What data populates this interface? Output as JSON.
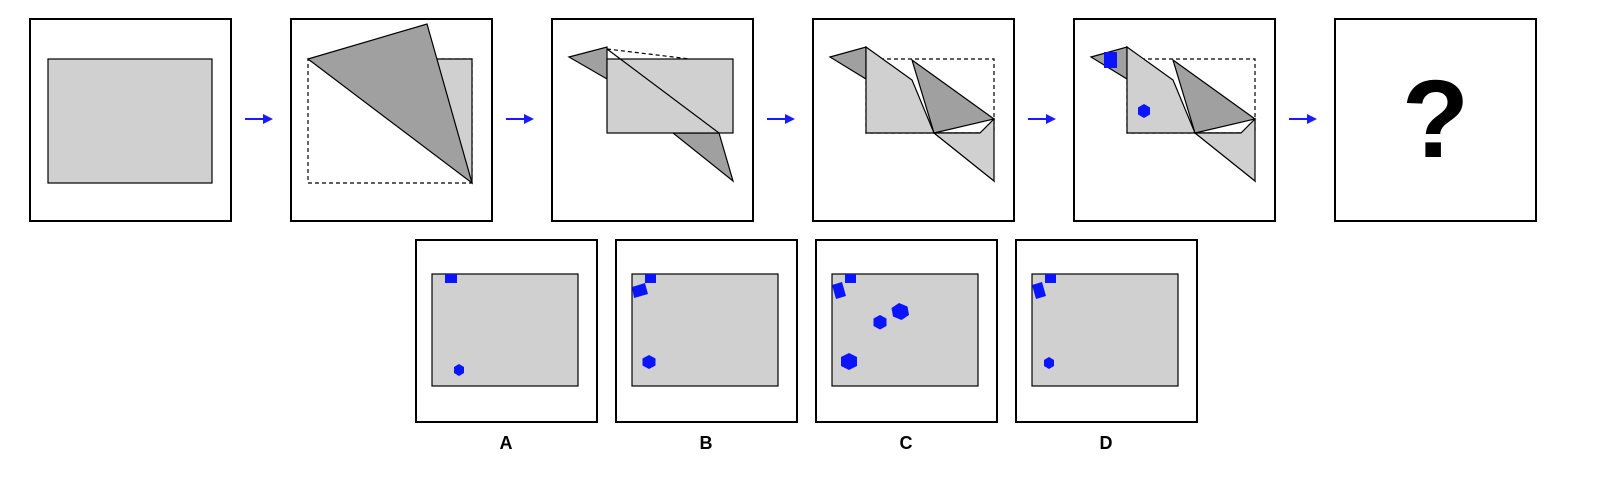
{
  "puzzle": {
    "question_mark": "?",
    "colors": {
      "paper": "#d0d0d0",
      "paper_dark": "#a0a0a0",
      "hole": "#0a14ff",
      "arrow": "#1a1aff",
      "outline": "#000000"
    }
  },
  "options": [
    {
      "label": "A"
    },
    {
      "label": "B"
    },
    {
      "label": "C"
    },
    {
      "label": "D"
    }
  ]
}
